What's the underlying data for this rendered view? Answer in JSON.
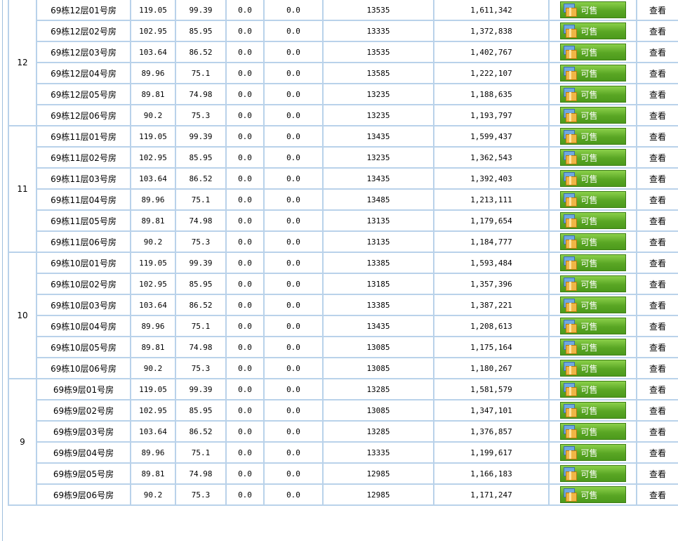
{
  "labels": {
    "sale": "可售",
    "view": "查看"
  },
  "floors": [
    {
      "floor": "12",
      "rooms": [
        {
          "name": "69栋12层01号房",
          "area": "119.05",
          "inner": "99.39",
          "a": "0.0",
          "b": "0.0",
          "price": "13535",
          "total": "1,611,342"
        },
        {
          "name": "69栋12层02号房",
          "area": "102.95",
          "inner": "85.95",
          "a": "0.0",
          "b": "0.0",
          "price": "13335",
          "total": "1,372,838"
        },
        {
          "name": "69栋12层03号房",
          "area": "103.64",
          "inner": "86.52",
          "a": "0.0",
          "b": "0.0",
          "price": "13535",
          "total": "1,402,767"
        },
        {
          "name": "69栋12层04号房",
          "area": "89.96",
          "inner": "75.1",
          "a": "0.0",
          "b": "0.0",
          "price": "13585",
          "total": "1,222,107"
        },
        {
          "name": "69栋12层05号房",
          "area": "89.81",
          "inner": "74.98",
          "a": "0.0",
          "b": "0.0",
          "price": "13235",
          "total": "1,188,635"
        },
        {
          "name": "69栋12层06号房",
          "area": "90.2",
          "inner": "75.3",
          "a": "0.0",
          "b": "0.0",
          "price": "13235",
          "total": "1,193,797"
        }
      ]
    },
    {
      "floor": "11",
      "rooms": [
        {
          "name": "69栋11层01号房",
          "area": "119.05",
          "inner": "99.39",
          "a": "0.0",
          "b": "0.0",
          "price": "13435",
          "total": "1,599,437"
        },
        {
          "name": "69栋11层02号房",
          "area": "102.95",
          "inner": "85.95",
          "a": "0.0",
          "b": "0.0",
          "price": "13235",
          "total": "1,362,543"
        },
        {
          "name": "69栋11层03号房",
          "area": "103.64",
          "inner": "86.52",
          "a": "0.0",
          "b": "0.0",
          "price": "13435",
          "total": "1,392,403"
        },
        {
          "name": "69栋11层04号房",
          "area": "89.96",
          "inner": "75.1",
          "a": "0.0",
          "b": "0.0",
          "price": "13485",
          "total": "1,213,111"
        },
        {
          "name": "69栋11层05号房",
          "area": "89.81",
          "inner": "74.98",
          "a": "0.0",
          "b": "0.0",
          "price": "13135",
          "total": "1,179,654"
        },
        {
          "name": "69栋11层06号房",
          "area": "90.2",
          "inner": "75.3",
          "a": "0.0",
          "b": "0.0",
          "price": "13135",
          "total": "1,184,777"
        }
      ]
    },
    {
      "floor": "10",
      "rooms": [
        {
          "name": "69栋10层01号房",
          "area": "119.05",
          "inner": "99.39",
          "a": "0.0",
          "b": "0.0",
          "price": "13385",
          "total": "1,593,484"
        },
        {
          "name": "69栋10层02号房",
          "area": "102.95",
          "inner": "85.95",
          "a": "0.0",
          "b": "0.0",
          "price": "13185",
          "total": "1,357,396"
        },
        {
          "name": "69栋10层03号房",
          "area": "103.64",
          "inner": "86.52",
          "a": "0.0",
          "b": "0.0",
          "price": "13385",
          "total": "1,387,221"
        },
        {
          "name": "69栋10层04号房",
          "area": "89.96",
          "inner": "75.1",
          "a": "0.0",
          "b": "0.0",
          "price": "13435",
          "total": "1,208,613"
        },
        {
          "name": "69栋10层05号房",
          "area": "89.81",
          "inner": "74.98",
          "a": "0.0",
          "b": "0.0",
          "price": "13085",
          "total": "1,175,164"
        },
        {
          "name": "69栋10层06号房",
          "area": "90.2",
          "inner": "75.3",
          "a": "0.0",
          "b": "0.0",
          "price": "13085",
          "total": "1,180,267"
        }
      ]
    },
    {
      "floor": "9",
      "rooms": [
        {
          "name": "69栋9层01号房",
          "area": "119.05",
          "inner": "99.39",
          "a": "0.0",
          "b": "0.0",
          "price": "13285",
          "total": "1,581,579"
        },
        {
          "name": "69栋9层02号房",
          "area": "102.95",
          "inner": "85.95",
          "a": "0.0",
          "b": "0.0",
          "price": "13085",
          "total": "1,347,101"
        },
        {
          "name": "69栋9层03号房",
          "area": "103.64",
          "inner": "86.52",
          "a": "0.0",
          "b": "0.0",
          "price": "13285",
          "total": "1,376,857"
        },
        {
          "name": "69栋9层04号房",
          "area": "89.96",
          "inner": "75.1",
          "a": "0.0",
          "b": "0.0",
          "price": "13335",
          "total": "1,199,617"
        },
        {
          "name": "69栋9层05号房",
          "area": "89.81",
          "inner": "74.98",
          "a": "0.0",
          "b": "0.0",
          "price": "12985",
          "total": "1,166,183"
        },
        {
          "name": "69栋9层06号房",
          "area": "90.2",
          "inner": "75.3",
          "a": "0.0",
          "b": "0.0",
          "price": "12985",
          "total": "1,171,247"
        }
      ]
    }
  ]
}
